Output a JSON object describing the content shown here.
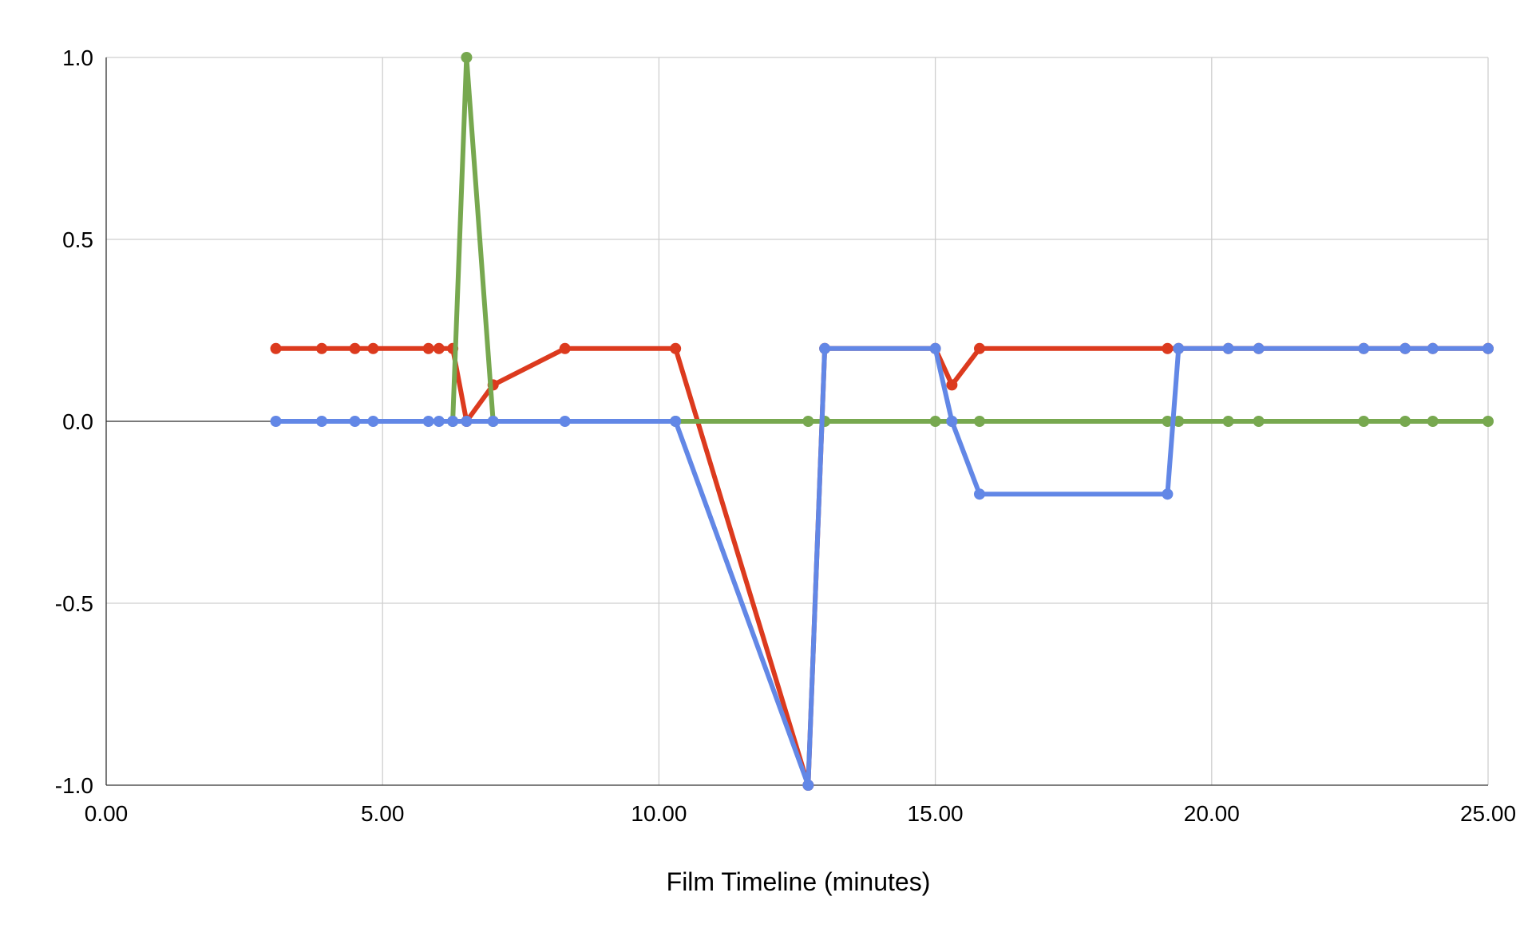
{
  "chart_data": {
    "type": "line",
    "title": "",
    "xlabel": "Film Timeline (minutes)",
    "ylabel": "",
    "xlim": [
      0,
      25
    ],
    "ylim": [
      -1,
      1
    ],
    "x_ticks": [
      0,
      5,
      10,
      15,
      20,
      25
    ],
    "x_tick_labels": [
      "0.00",
      "5.00",
      "10.00",
      "15.00",
      "20.00",
      "25.00"
    ],
    "y_ticks": [
      1.0,
      0.5,
      0.0,
      -0.5,
      -1.0
    ],
    "y_tick_labels": [
      "1.0",
      "0.5",
      "0.0",
      "-0.5",
      "-1.0"
    ],
    "grid": true,
    "legend": "none",
    "series": [
      {
        "color": "#dc3a1e",
        "points": [
          [
            3.07,
            0.2
          ],
          [
            3.9,
            0.2
          ],
          [
            4.5,
            0.2
          ],
          [
            4.83,
            0.2
          ],
          [
            5.83,
            0.2
          ],
          [
            6.02,
            0.2
          ],
          [
            6.27,
            0.2
          ],
          [
            6.52,
            0.0
          ],
          [
            7.0,
            0.1
          ],
          [
            8.3,
            0.2
          ],
          [
            10.3,
            0.2
          ],
          [
            12.7,
            -1.0
          ],
          [
            13.0,
            0.2
          ],
          [
            15.0,
            0.2
          ],
          [
            15.3,
            0.1
          ],
          [
            15.8,
            0.2
          ],
          [
            19.2,
            0.2
          ],
          [
            19.4,
            0.2
          ],
          [
            20.3,
            0.2
          ],
          [
            20.85,
            0.2
          ],
          [
            22.75,
            0.2
          ],
          [
            23.5,
            0.2
          ],
          [
            24.0,
            0.2
          ],
          [
            25.0,
            0.2
          ]
        ]
      },
      {
        "color": "#77a84f",
        "points": [
          [
            6.27,
            0.0
          ],
          [
            6.52,
            1.0
          ],
          [
            7.0,
            0.0
          ],
          [
            10.3,
            0.0
          ],
          [
            12.7,
            0.0
          ],
          [
            13.0,
            0.0
          ],
          [
            15.0,
            0.0
          ],
          [
            15.3,
            0.0
          ],
          [
            15.8,
            0.0
          ],
          [
            19.2,
            0.0
          ],
          [
            19.4,
            0.0
          ],
          [
            20.3,
            0.0
          ],
          [
            20.85,
            0.0
          ],
          [
            22.75,
            0.0
          ],
          [
            23.5,
            0.0
          ],
          [
            24.0,
            0.0
          ],
          [
            25.0,
            0.0
          ]
        ]
      },
      {
        "color": "#6287e6",
        "points": [
          [
            3.07,
            0.0
          ],
          [
            3.9,
            0.0
          ],
          [
            4.5,
            0.0
          ],
          [
            4.83,
            0.0
          ],
          [
            5.83,
            0.0
          ],
          [
            6.02,
            0.0
          ],
          [
            6.27,
            0.0
          ],
          [
            6.52,
            0.0
          ],
          [
            7.0,
            0.0
          ],
          [
            8.3,
            0.0
          ],
          [
            10.3,
            0.0
          ],
          [
            12.7,
            -1.0
          ],
          [
            13.0,
            0.2
          ],
          [
            15.0,
            0.2
          ],
          [
            15.3,
            0.0
          ],
          [
            15.8,
            -0.2
          ],
          [
            19.2,
            -0.2
          ],
          [
            19.4,
            0.2
          ],
          [
            20.3,
            0.2
          ],
          [
            20.85,
            0.2
          ],
          [
            22.75,
            0.2
          ],
          [
            23.5,
            0.2
          ],
          [
            24.0,
            0.2
          ],
          [
            25.0,
            0.2
          ]
        ]
      }
    ]
  }
}
